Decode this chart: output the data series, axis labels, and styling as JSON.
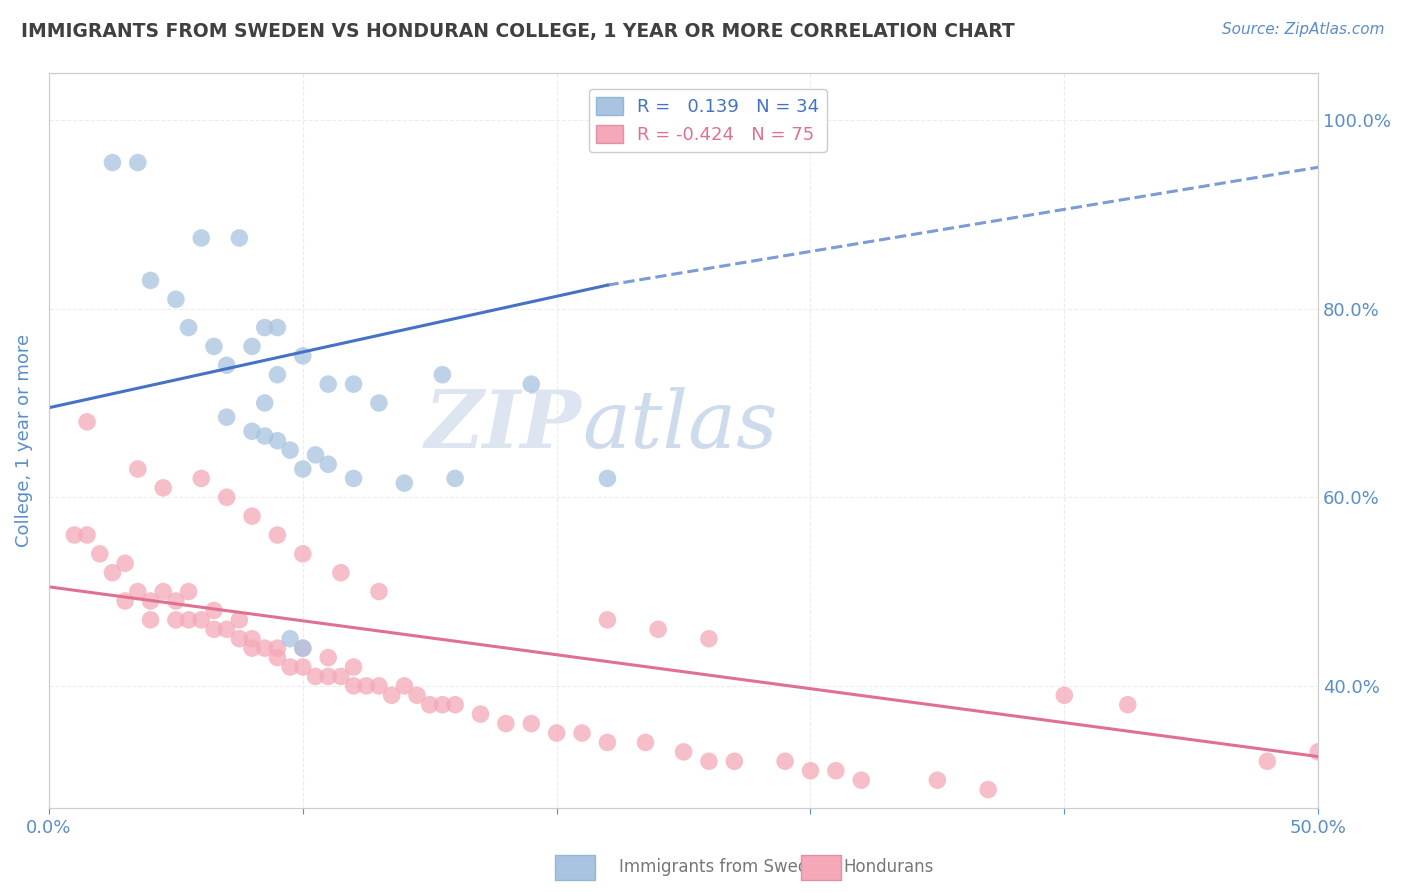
{
  "title": "IMMIGRANTS FROM SWEDEN VS HONDURAN COLLEGE, 1 YEAR OR MORE CORRELATION CHART",
  "source_text": "Source: ZipAtlas.com",
  "ylabel": "College, 1 year or more",
  "xlim": [
    0.0,
    0.5
  ],
  "ylim": [
    0.27,
    1.05
  ],
  "sweden_color": "#a8c4e0",
  "honduran_color": "#f4a8b8",
  "sweden_line_color": "#4472c4",
  "honduran_line_color": "#e07090",
  "R_sweden": 0.139,
  "N_sweden": 34,
  "R_honduran": -0.424,
  "N_honduran": 75,
  "sweden_line_solid": [
    [
      0.0,
      0.22
    ],
    [
      0.695,
      0.825
    ]
  ],
  "sweden_line_dashed": [
    [
      0.22,
      0.5
    ],
    [
      0.825,
      0.95
    ]
  ],
  "honduran_line": [
    [
      0.0,
      0.5
    ],
    [
      0.505,
      0.325
    ]
  ],
  "sweden_scatter_x": [
    0.025,
    0.035,
    0.06,
    0.075,
    0.085,
    0.09,
    0.04,
    0.05,
    0.055,
    0.065,
    0.07,
    0.08,
    0.09,
    0.1,
    0.11,
    0.12,
    0.13,
    0.155,
    0.19,
    0.085,
    0.07,
    0.08,
    0.085,
    0.09,
    0.095,
    0.1,
    0.105,
    0.11,
    0.12,
    0.14,
    0.16,
    0.22,
    0.095,
    0.1
  ],
  "sweden_scatter_y": [
    0.955,
    0.955,
    0.875,
    0.875,
    0.78,
    0.78,
    0.83,
    0.81,
    0.78,
    0.76,
    0.74,
    0.76,
    0.73,
    0.75,
    0.72,
    0.72,
    0.7,
    0.73,
    0.72,
    0.7,
    0.685,
    0.67,
    0.665,
    0.66,
    0.65,
    0.63,
    0.645,
    0.635,
    0.62,
    0.615,
    0.62,
    0.62,
    0.45,
    0.44
  ],
  "honduran_scatter_x": [
    0.01,
    0.015,
    0.02,
    0.025,
    0.03,
    0.03,
    0.035,
    0.04,
    0.04,
    0.045,
    0.05,
    0.05,
    0.055,
    0.055,
    0.06,
    0.065,
    0.065,
    0.07,
    0.075,
    0.075,
    0.08,
    0.08,
    0.085,
    0.09,
    0.09,
    0.095,
    0.1,
    0.1,
    0.105,
    0.11,
    0.11,
    0.115,
    0.12,
    0.12,
    0.125,
    0.13,
    0.135,
    0.14,
    0.145,
    0.15,
    0.155,
    0.16,
    0.17,
    0.18,
    0.19,
    0.2,
    0.21,
    0.22,
    0.235,
    0.25,
    0.26,
    0.27,
    0.29,
    0.3,
    0.31,
    0.32,
    0.35,
    0.37,
    0.4,
    0.425,
    0.015,
    0.035,
    0.045,
    0.06,
    0.07,
    0.08,
    0.09,
    0.1,
    0.115,
    0.13,
    0.22,
    0.24,
    0.26,
    0.48,
    0.5
  ],
  "honduran_scatter_y": [
    0.56,
    0.56,
    0.54,
    0.52,
    0.53,
    0.49,
    0.5,
    0.49,
    0.47,
    0.5,
    0.49,
    0.47,
    0.5,
    0.47,
    0.47,
    0.48,
    0.46,
    0.46,
    0.47,
    0.45,
    0.45,
    0.44,
    0.44,
    0.44,
    0.43,
    0.42,
    0.44,
    0.42,
    0.41,
    0.43,
    0.41,
    0.41,
    0.4,
    0.42,
    0.4,
    0.4,
    0.39,
    0.4,
    0.39,
    0.38,
    0.38,
    0.38,
    0.37,
    0.36,
    0.36,
    0.35,
    0.35,
    0.34,
    0.34,
    0.33,
    0.32,
    0.32,
    0.32,
    0.31,
    0.31,
    0.3,
    0.3,
    0.29,
    0.39,
    0.38,
    0.68,
    0.63,
    0.61,
    0.62,
    0.6,
    0.58,
    0.56,
    0.54,
    0.52,
    0.5,
    0.47,
    0.46,
    0.45,
    0.32,
    0.33
  ],
  "background_color": "#ffffff",
  "grid_color": "#e8e8e8",
  "title_color": "#404040",
  "axis_label_color": "#5b8dc8",
  "watermark_color": "#dde5f0"
}
